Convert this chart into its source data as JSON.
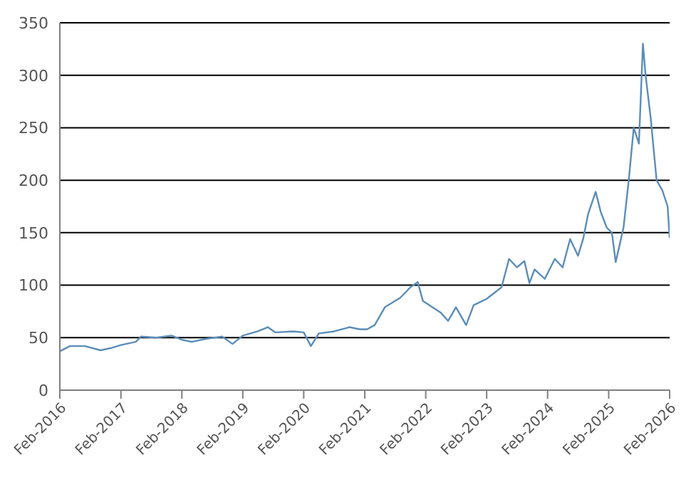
{
  "chart_data": {
    "type": "line",
    "x": [
      "2016-02-01",
      "2016-04-01",
      "2016-07-01",
      "2016-10-01",
      "2016-12-01",
      "2017-02-01",
      "2017-05-01",
      "2017-06-01",
      "2017-09-01",
      "2017-12-01",
      "2018-02-01",
      "2018-04-01",
      "2018-07-01",
      "2018-10-01",
      "2018-12-01",
      "2019-02-01",
      "2019-05-01",
      "2019-07-01",
      "2019-08-15",
      "2019-12-01",
      "2020-02-01",
      "2020-03-15",
      "2020-05-01",
      "2020-08-01",
      "2020-11-01",
      "2021-01-01",
      "2021-02-15",
      "2021-04-01",
      "2021-06-01",
      "2021-09-01",
      "2021-11-01",
      "2021-12-15",
      "2022-01-15",
      "2022-05-01",
      "2022-06-15",
      "2022-08-01",
      "2022-10-01",
      "2022-11-15",
      "2023-02-01",
      "2023-05-01",
      "2023-06-15",
      "2023-08-01",
      "2023-09-15",
      "2023-10-15",
      "2023-11-15",
      "2024-01-15",
      "2024-03-15",
      "2024-05-01",
      "2024-06-15",
      "2024-08-01",
      "2024-09-01",
      "2024-10-01",
      "2024-11-15",
      "2024-12-15",
      "2025-01-20",
      "2025-02-20",
      "2025-03-15",
      "2025-05-01",
      "2025-06-01",
      "2025-07-01",
      "2025-08-01",
      "2025-08-25",
      "2025-09-10",
      "2025-10-10",
      "2025-11-15",
      "2025-12-20",
      "2026-01-20",
      "2026-02-01"
    ],
    "series": [
      {
        "color": "#5b8db8",
        "values": [
          37,
          42,
          42,
          38,
          40,
          43,
          46,
          51,
          50,
          52,
          48,
          46,
          49,
          51,
          44,
          52,
          56,
          60,
          55,
          56,
          55,
          42,
          54,
          56,
          60,
          58,
          58,
          62,
          79,
          88,
          98,
          103,
          85,
          74,
          66,
          79,
          62,
          81,
          87,
          98,
          125,
          117,
          123,
          102,
          115,
          106,
          125,
          117,
          144,
          128,
          144,
          168,
          189,
          170,
          155,
          150,
          122,
          155,
          200,
          250,
          235,
          330,
          300,
          260,
          200,
          190,
          175,
          145
        ]
      }
    ],
    "xlim": [
      "2016-02-01",
      "2026-02-01"
    ],
    "xticks": [
      {
        "value": "2016-02-01",
        "label": "Feb-2016"
      },
      {
        "value": "2017-02-01",
        "label": "Feb-2017"
      },
      {
        "value": "2018-02-01",
        "label": "Feb-2018"
      },
      {
        "value": "2019-02-01",
        "label": "Feb-2019"
      },
      {
        "value": "2020-02-01",
        "label": "Feb-2020"
      },
      {
        "value": "2021-02-01",
        "label": "Feb-2021"
      },
      {
        "value": "2022-02-01",
        "label": "Feb-2022"
      },
      {
        "value": "2023-02-01",
        "label": "Feb-2023"
      },
      {
        "value": "2024-02-01",
        "label": "Feb-2024"
      },
      {
        "value": "2025-02-01",
        "label": "Feb-2025"
      },
      {
        "value": "2026-02-01",
        "label": "Feb-2026"
      }
    ],
    "ylim": [
      0,
      350
    ],
    "yticks": [
      0,
      50,
      100,
      150,
      200,
      250,
      300,
      350
    ],
    "grid": "y",
    "legend": false,
    "marker": "none",
    "line_style": "solid"
  }
}
